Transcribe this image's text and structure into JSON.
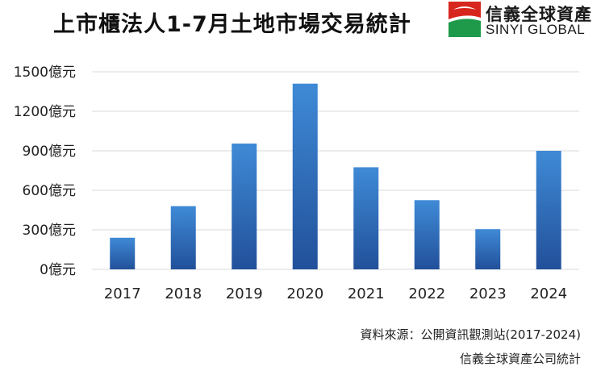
{
  "header": {
    "title": "上市櫃法人1-7月土地市場交易統計"
  },
  "logo": {
    "name_cn": "信義全球資產",
    "name_en": "SINYI GLOBAL",
    "colors": {
      "red": "#d7261e",
      "green": "#1e9a4a"
    }
  },
  "chart_data": {
    "type": "bar",
    "categories": [
      "2017",
      "2018",
      "2019",
      "2020",
      "2021",
      "2022",
      "2023",
      "2024"
    ],
    "values": [
      240,
      480,
      955,
      1410,
      775,
      525,
      305,
      900
    ],
    "y_tick_labels": [
      "0億元",
      "300億元",
      "600億元",
      "900億元",
      "1200億元",
      "1500億元"
    ],
    "y_ticks": [
      0,
      300,
      600,
      900,
      1200,
      1500
    ],
    "ylim": [
      0,
      1500
    ],
    "unit": "億元",
    "grid": true,
    "bar_color_top": "#3f8ad6",
    "bar_color_bottom": "#22509a"
  },
  "footer": {
    "source": "資料來源：公開資訊觀測站(2017-2024)",
    "statistics_by": "信義全球資產公司統計"
  }
}
